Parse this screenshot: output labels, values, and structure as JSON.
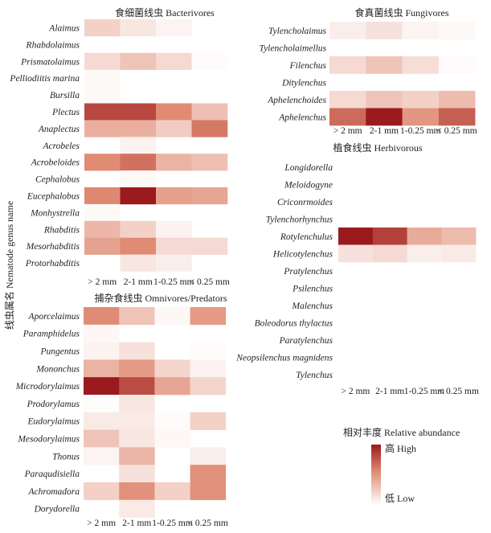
{
  "chart_data": [
    {
      "type": "heatmap",
      "title": "食细菌线虫 Bacterivores",
      "categories": [
        "> 2 mm",
        "2-1 mm",
        "1-0.25 mm",
        "< 0.25 mm"
      ],
      "rows": [
        "Alaimus",
        "Rhabdolaimus",
        "Prismatolaimus",
        "Pelliodiitis marina",
        "Bursilla",
        "Plectus",
        "Anaplectus",
        "Acrobeles",
        "Acrobeloides",
        "Cephalobus",
        "Eucephalobus",
        "Monhystrella",
        "Rhabditis",
        "Mesorhabditis",
        "Protorhabditis"
      ],
      "values": [
        [
          0.22,
          0.12,
          0.05,
          0.0
        ],
        [
          0.0,
          0.0,
          0.0,
          0.0
        ],
        [
          0.18,
          0.28,
          0.18,
          0.02
        ],
        [
          0.03,
          0.0,
          0.0,
          0.0
        ],
        [
          0.03,
          0.0,
          0.0,
          0.0
        ],
        [
          0.82,
          0.82,
          0.55,
          0.3
        ],
        [
          0.38,
          0.38,
          0.24,
          0.62
        ],
        [
          0.0,
          0.06,
          0.0,
          0.0
        ],
        [
          0.55,
          0.65,
          0.36,
          0.3
        ],
        [
          0.0,
          0.03,
          0.0,
          0.0
        ],
        [
          0.56,
          1.0,
          0.45,
          0.42
        ],
        [
          0.03,
          0.0,
          0.0,
          0.0
        ],
        [
          0.34,
          0.22,
          0.06,
          0.0
        ],
        [
          0.44,
          0.55,
          0.18,
          0.18
        ],
        [
          0.0,
          0.12,
          0.08,
          0.0
        ]
      ]
    },
    {
      "type": "heatmap",
      "title": "捕杂食线虫 Omnivores/Predators",
      "categories": [
        "> 2 mm",
        "2-1 mm",
        "1-0.25 mm",
        "< 0.25 mm"
      ],
      "rows": [
        "Aporcelaimus",
        "Paramphidelus",
        "Pungentus",
        "Mononchus",
        "Microdorylaimus",
        "Prodorylamus",
        "Eudorylaimus",
        "Mesodorylaimus",
        "Thonus",
        "Paraqudisiella",
        "Achromadora",
        "Dorydorella"
      ],
      "values": [
        [
          0.55,
          0.28,
          0.04,
          0.48
        ],
        [
          0.04,
          0.0,
          0.0,
          0.0
        ],
        [
          0.06,
          0.14,
          0.0,
          0.02
        ],
        [
          0.36,
          0.48,
          0.2,
          0.06
        ],
        [
          1.0,
          0.8,
          0.42,
          0.2
        ],
        [
          0.01,
          0.12,
          0.0,
          0.0
        ],
        [
          0.1,
          0.1,
          0.02,
          0.22
        ],
        [
          0.28,
          0.12,
          0.04,
          0.0
        ],
        [
          0.05,
          0.35,
          0.0,
          0.08
        ],
        [
          0.0,
          0.14,
          0.0,
          0.52
        ],
        [
          0.22,
          0.52,
          0.22,
          0.52
        ],
        [
          0.0,
          0.1,
          0.0,
          0.0
        ]
      ]
    },
    {
      "type": "heatmap",
      "title": "食真菌线虫 Fungivores",
      "categories": [
        "> 2 mm",
        "2-1 mm",
        "1-0.25 mm",
        "< 0.25 mm"
      ],
      "rows": [
        "Tylencholaimus",
        "Tylencholaimellus",
        "Filenchus",
        "Ditylenchus",
        "Aphelenchoides",
        "Aphelenchus"
      ],
      "values": [
        [
          0.08,
          0.14,
          0.05,
          0.03
        ],
        [
          0.0,
          0.0,
          0.0,
          0.0
        ],
        [
          0.18,
          0.28,
          0.16,
          0.02
        ],
        [
          0.0,
          0.0,
          0.0,
          0.0
        ],
        [
          0.18,
          0.28,
          0.22,
          0.32
        ],
        [
          0.68,
          1.0,
          0.5,
          0.72
        ]
      ]
    },
    {
      "type": "heatmap",
      "title": "植食线虫 Herbivorous",
      "categories": [
        "> 2 mm",
        "2-1 mm",
        "1-0.25 mm",
        "< 0.25 mm"
      ],
      "rows": [
        "Longidorella",
        "Meloidogyne",
        "Criconrmoides",
        "Tylenchorhynchus",
        "Rotylenchulus",
        "Helicotylenchus",
        "Pratylenchus",
        "Psilenchus",
        "Malenchus",
        "Boleodorus thylactus",
        "Paratylenchus",
        "Neopsilenchus magnidens",
        "Tylenchus"
      ],
      "values": [
        [
          0.0,
          0.0,
          0.0,
          0.0
        ],
        [
          0.0,
          0.0,
          0.0,
          0.0
        ],
        [
          0.0,
          0.0,
          0.0,
          0.0
        ],
        [
          0.0,
          0.0,
          0.0,
          0.0
        ],
        [
          1.0,
          0.85,
          0.4,
          0.32
        ],
        [
          0.14,
          0.18,
          0.08,
          0.1
        ],
        [
          0.0,
          0.0,
          0.0,
          0.0
        ],
        [
          0.0,
          0.0,
          0.0,
          0.0
        ],
        [
          0.0,
          0.0,
          0.0,
          0.0
        ],
        [
          0.0,
          0.0,
          0.0,
          0.0
        ],
        [
          0.0,
          0.0,
          0.0,
          0.0
        ],
        [
          0.0,
          0.0,
          0.0,
          0.0
        ],
        [
          0.0,
          0.0,
          0.0,
          0.0
        ]
      ]
    }
  ],
  "ylabel": "线虫属名 Nematode genus name",
  "legend": {
    "title": "相对丰度 Relative abundance",
    "high_label": "高 High",
    "low_label": "低 Low",
    "color_high": "#9b1a1e",
    "color_mid": "#e08b74",
    "color_low": "#ffffff"
  }
}
